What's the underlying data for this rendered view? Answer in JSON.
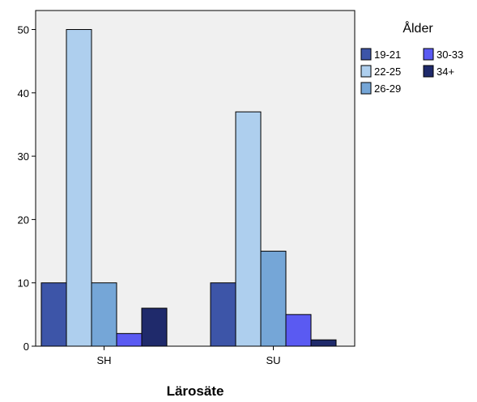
{
  "chart_data": {
    "type": "bar",
    "categories": [
      "SH",
      "SU"
    ],
    "xlabel": "Lärosäte",
    "ylabel": "",
    "ylim": [
      0,
      53
    ],
    "yticks": [
      0,
      10,
      20,
      30,
      40,
      50
    ],
    "grid": false,
    "legend": {
      "title": "Ålder",
      "placement": "top-right",
      "columns": [
        [
          "19-21",
          "22-25",
          "26-29"
        ],
        [
          "30-33",
          "34+"
        ]
      ]
    },
    "series": [
      {
        "name": "19-21",
        "values": [
          10,
          10
        ],
        "color": "#3d55a8"
      },
      {
        "name": "22-25",
        "values": [
          50,
          37
        ],
        "color": "#aecfee"
      },
      {
        "name": "26-29",
        "values": [
          10,
          15
        ],
        "color": "#75a6d7"
      },
      {
        "name": "30-33",
        "values": [
          2,
          5
        ],
        "color": "#5a5af2"
      },
      {
        "name": "34+",
        "values": [
          6,
          1
        ],
        "color": "#1f2a6b"
      }
    ],
    "plot_background": "#f0f0f0"
  }
}
